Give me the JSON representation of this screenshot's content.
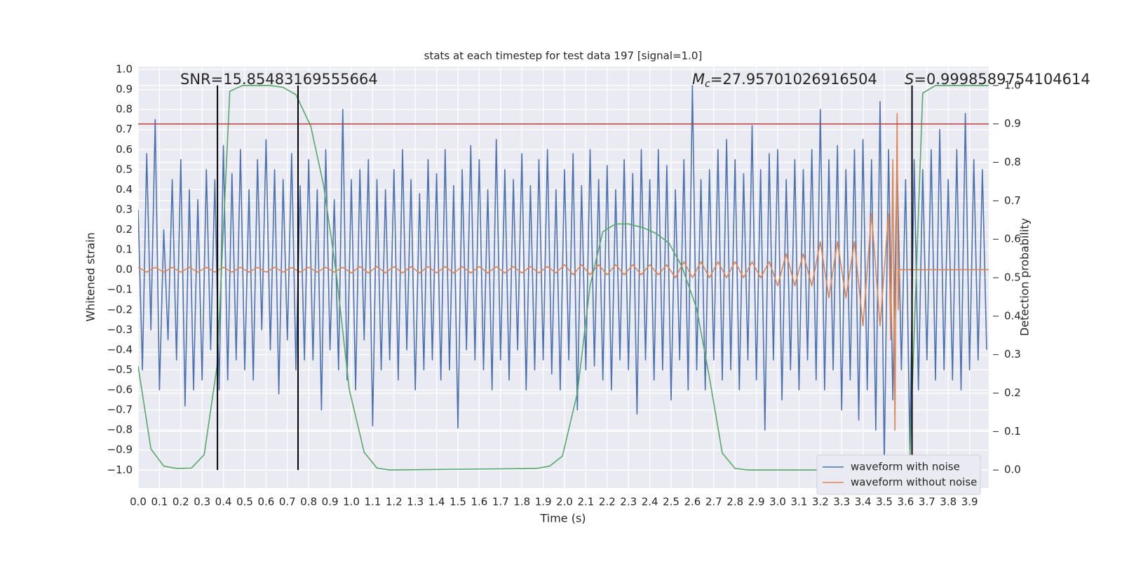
{
  "chart_data": {
    "type": "line",
    "title": "stats at each timestep for test data 197 [signal=1.0]",
    "xlabel": "Time (s)",
    "ylabel": "Whitened strain",
    "y2label": "Detection probability",
    "annotations": [
      {
        "text": "SNR=15.85483169555664"
      },
      {
        "symbol": "M",
        "subscript": "c",
        "text": "=27.95701026916504"
      },
      {
        "symbol": "S",
        "text": "=0.9998589754104614"
      }
    ],
    "xlim": [
      0,
      3.99
    ],
    "ylim": [
      -1.09,
      1.014
    ],
    "y2lim": [
      -0.047,
      1.049
    ],
    "grid": true,
    "legend": "lower right",
    "xticks": [
      {
        "value": 0,
        "label": "0.0"
      },
      {
        "value": 0.1,
        "label": "0.1"
      },
      {
        "value": 0.2,
        "label": "0.2"
      },
      {
        "value": 0.3,
        "label": "0.3"
      },
      {
        "value": 0.4,
        "label": "0.4"
      },
      {
        "value": 0.5,
        "label": "0.5"
      },
      {
        "value": 0.6,
        "label": "0.6"
      },
      {
        "value": 0.7,
        "label": "0.7"
      },
      {
        "value": 0.8,
        "label": "0.8"
      },
      {
        "value": 0.9,
        "label": "0.9"
      },
      {
        "value": 1,
        "label": "1.0"
      },
      {
        "value": 1.1,
        "label": "1.1"
      },
      {
        "value": 1.2,
        "label": "1.2"
      },
      {
        "value": 1.3,
        "label": "1.3"
      },
      {
        "value": 1.4,
        "label": "1.4"
      },
      {
        "value": 1.5,
        "label": "1.5"
      },
      {
        "value": 1.6,
        "label": "1.6"
      },
      {
        "value": 1.7,
        "label": "1.7"
      },
      {
        "value": 1.8,
        "label": "1.8"
      },
      {
        "value": 1.9,
        "label": "1.9"
      },
      {
        "value": 2,
        "label": "2.0"
      },
      {
        "value": 2.1,
        "label": "2.1"
      },
      {
        "value": 2.2,
        "label": "2.2"
      },
      {
        "value": 2.3,
        "label": "2.3"
      },
      {
        "value": 2.4,
        "label": "2.4"
      },
      {
        "value": 2.5,
        "label": "2.5"
      },
      {
        "value": 2.6,
        "label": "2.6"
      },
      {
        "value": 2.7,
        "label": "2.7"
      },
      {
        "value": 2.8,
        "label": "2.8"
      },
      {
        "value": 2.9,
        "label": "2.9"
      },
      {
        "value": 3,
        "label": "3.0"
      },
      {
        "value": 3.1,
        "label": "3.1"
      },
      {
        "value": 3.2,
        "label": "3.2"
      },
      {
        "value": 3.3,
        "label": "3.3"
      },
      {
        "value": 3.4,
        "label": "3.4"
      },
      {
        "value": 3.5,
        "label": "3.5"
      },
      {
        "value": 3.6,
        "label": "3.6"
      },
      {
        "value": 3.7,
        "label": "3.7"
      },
      {
        "value": 3.8,
        "label": "3.8"
      },
      {
        "value": 3.9,
        "label": "3.9"
      }
    ],
    "yticks": [
      {
        "value": -1,
        "label": "−1.0"
      },
      {
        "value": -0.9,
        "label": "−0.9"
      },
      {
        "value": -0.8,
        "label": "−0.8"
      },
      {
        "value": -0.7,
        "label": "−0.7"
      },
      {
        "value": -0.6,
        "label": "−0.6"
      },
      {
        "value": -0.5,
        "label": "−0.5"
      },
      {
        "value": -0.4,
        "label": "−0.4"
      },
      {
        "value": -0.3,
        "label": "−0.3"
      },
      {
        "value": -0.2,
        "label": "−0.2"
      },
      {
        "value": -0.1,
        "label": "−0.1"
      },
      {
        "value": 0,
        "label": "0.0"
      },
      {
        "value": 0.1,
        "label": "0.1"
      },
      {
        "value": 0.2,
        "label": "0.2"
      },
      {
        "value": 0.3,
        "label": "0.3"
      },
      {
        "value": 0.4,
        "label": "0.4"
      },
      {
        "value": 0.5,
        "label": "0.5"
      },
      {
        "value": 0.6,
        "label": "0.6"
      },
      {
        "value": 0.7,
        "label": "0.7"
      },
      {
        "value": 0.8,
        "label": "0.8"
      },
      {
        "value": 0.9,
        "label": "0.9"
      },
      {
        "value": 1,
        "label": "1.0"
      }
    ],
    "y2ticks": [
      {
        "value": 0,
        "label": "0.0"
      },
      {
        "value": 0.1,
        "label": "0.1"
      },
      {
        "value": 0.2,
        "label": "0.2"
      },
      {
        "value": 0.3,
        "label": "0.3"
      },
      {
        "value": 0.4,
        "label": "0.4"
      },
      {
        "value": 0.5,
        "label": "0.5"
      },
      {
        "value": 0.6,
        "label": "0.6"
      },
      {
        "value": 0.7,
        "label": "0.7"
      },
      {
        "value": 0.8,
        "label": "0.8"
      },
      {
        "value": 0.9,
        "label": "0.9"
      },
      {
        "value": 1,
        "label": "1.0"
      }
    ],
    "hline": {
      "y2": 0.9,
      "color": "#c03d3e"
    },
    "vlines": {
      "x": [
        0.372,
        0.75,
        3.63
      ],
      "y2_span": [
        0,
        1
      ],
      "color": "#000000"
    },
    "series": [
      {
        "name": "waveform with noise",
        "color": "#4c72b0",
        "x": [
          0,
          0.02,
          0.04,
          0.06,
          0.08,
          0.1,
          0.12,
          0.14,
          0.16,
          0.18,
          0.2,
          0.22,
          0.24,
          0.26,
          0.28,
          0.3,
          0.32,
          0.34,
          0.36,
          0.38,
          0.4,
          0.42,
          0.44,
          0.46,
          0.48,
          0.5,
          0.52,
          0.54,
          0.56,
          0.58,
          0.6,
          0.62,
          0.64,
          0.66,
          0.68,
          0.7,
          0.72,
          0.74,
          0.76,
          0.78,
          0.8,
          0.82,
          0.84,
          0.86,
          0.88,
          0.9,
          0.92,
          0.94,
          0.96,
          0.98,
          1,
          1.02,
          1.04,
          1.06,
          1.08,
          1.1,
          1.12,
          1.14,
          1.16,
          1.18,
          1.2,
          1.22,
          1.24,
          1.26,
          1.28,
          1.3,
          1.32,
          1.34,
          1.36,
          1.38,
          1.4,
          1.42,
          1.44,
          1.46,
          1.48,
          1.5,
          1.52,
          1.54,
          1.56,
          1.58,
          1.6,
          1.62,
          1.64,
          1.66,
          1.68,
          1.7,
          1.72,
          1.74,
          1.76,
          1.78,
          1.8,
          1.82,
          1.84,
          1.86,
          1.88,
          1.9,
          1.92,
          1.94,
          1.96,
          1.98,
          2,
          2.02,
          2.04,
          2.06,
          2.08,
          2.1,
          2.12,
          2.14,
          2.16,
          2.18,
          2.2,
          2.22,
          2.24,
          2.26,
          2.28,
          2.3,
          2.32,
          2.34,
          2.36,
          2.38,
          2.4,
          2.42,
          2.44,
          2.46,
          2.48,
          2.5,
          2.52,
          2.54,
          2.56,
          2.58,
          2.6,
          2.62,
          2.64,
          2.66,
          2.68,
          2.7,
          2.72,
          2.74,
          2.76,
          2.78,
          2.8,
          2.82,
          2.84,
          2.86,
          2.88,
          2.9,
          2.92,
          2.94,
          2.96,
          2.98,
          3,
          3.02,
          3.04,
          3.06,
          3.08,
          3.1,
          3.12,
          3.14,
          3.16,
          3.18,
          3.2,
          3.22,
          3.24,
          3.26,
          3.28,
          3.3,
          3.32,
          3.34,
          3.36,
          3.38,
          3.4,
          3.42,
          3.44,
          3.46,
          3.48,
          3.5,
          3.52,
          3.54,
          3.56,
          3.58,
          3.6,
          3.62,
          3.64,
          3.66,
          3.68,
          3.7,
          3.72,
          3.74,
          3.76,
          3.78,
          3.8,
          3.82,
          3.84,
          3.86,
          3.88,
          3.9,
          3.92,
          3.94,
          3.96,
          3.98
        ],
        "values": [
          0.3,
          -0.5,
          0.58,
          -0.3,
          0.75,
          -0.6,
          0.2,
          -0.35,
          0.45,
          -0.45,
          0.55,
          -0.68,
          0.4,
          -0.6,
          0.35,
          -0.55,
          0.5,
          -0.4,
          0.45,
          -0.6,
          0.62,
          -0.55,
          0.48,
          -0.45,
          0.6,
          -0.5,
          0.4,
          -0.55,
          0.55,
          -0.3,
          0.65,
          -0.4,
          0.5,
          -0.62,
          0.45,
          -0.35,
          0.58,
          -0.5,
          0.42,
          -0.45,
          0.55,
          -0.45,
          0.4,
          -0.7,
          0.6,
          -0.4,
          0.35,
          -0.5,
          0.8,
          -0.55,
          0.45,
          -0.6,
          0.5,
          -0.35,
          0.55,
          -0.78,
          0.45,
          -0.5,
          0.4,
          -0.45,
          0.5,
          -0.55,
          0.6,
          -0.4,
          0.45,
          -0.6,
          0.38,
          -0.5,
          0.55,
          -0.45,
          0.48,
          -0.55,
          0.6,
          -0.5,
          0.42,
          -0.79,
          0.5,
          -0.4,
          0.62,
          -0.45,
          0.55,
          -0.5,
          0.4,
          -0.6,
          0.65,
          -0.45,
          0.5,
          -0.55,
          0.45,
          -0.4,
          0.58,
          -0.6,
          0.42,
          -0.5,
          0.55,
          -0.45,
          0.6,
          -0.52,
          0.4,
          -0.6,
          0.5,
          -0.45,
          0.58,
          -0.7,
          0.42,
          -0.5,
          0.6,
          -0.48,
          0.45,
          -0.55,
          0.52,
          -0.6,
          0.4,
          -0.45,
          0.55,
          -0.5,
          0.48,
          -0.72,
          0.6,
          -0.45,
          0.45,
          -0.55,
          0.6,
          -0.5,
          0.52,
          -0.65,
          0.4,
          -0.45,
          0.55,
          -0.6,
          0.92,
          -0.5,
          0.45,
          -0.6,
          0.5,
          -0.45,
          0.6,
          -0.55,
          0.65,
          -0.5,
          0.55,
          -0.6,
          0.48,
          -0.45,
          0.72,
          -0.55,
          0.5,
          -0.8,
          0.58,
          -0.45,
          0.6,
          -0.65,
          0.45,
          -0.5,
          0.55,
          -0.6,
          0.5,
          -0.45,
          0.6,
          -0.55,
          0.8,
          -0.6,
          0.55,
          -0.5,
          0.62,
          -0.7,
          0.5,
          -0.55,
          0.6,
          -0.75,
          0.65,
          -0.6,
          0.55,
          -0.8,
          0.84,
          -0.97,
          0.6,
          -0.65,
          0.55,
          -0.5,
          0.45,
          -0.9,
          0.55,
          -0.6,
          0.5,
          -0.45,
          0.6,
          -0.55,
          0.7,
          -0.5,
          0.45,
          -0.55,
          0.6,
          -0.6,
          0.78,
          -0.5,
          0.55,
          -0.45,
          0.5,
          -0.4
        ]
      },
      {
        "name": "waveform without noise",
        "color": "#dd8452",
        "x": [
          0,
          0.04,
          0.08,
          0.12,
          0.16,
          0.2,
          0.24,
          0.28,
          0.32,
          0.36,
          0.4,
          0.44,
          0.48,
          0.52,
          0.56,
          0.6,
          0.64,
          0.68,
          0.72,
          0.76,
          0.8,
          0.84,
          0.88,
          0.92,
          0.96,
          1,
          1.04,
          1.08,
          1.12,
          1.16,
          1.2,
          1.24,
          1.28,
          1.32,
          1.36,
          1.4,
          1.44,
          1.48,
          1.52,
          1.56,
          1.6,
          1.64,
          1.68,
          1.72,
          1.76,
          1.8,
          1.84,
          1.88,
          1.92,
          1.96,
          2,
          2.04,
          2.08,
          2.12,
          2.16,
          2.2,
          2.24,
          2.28,
          2.32,
          2.36,
          2.4,
          2.44,
          2.48,
          2.52,
          2.56,
          2.6,
          2.64,
          2.68,
          2.72,
          2.76,
          2.8,
          2.84,
          2.88,
          2.92,
          2.96,
          3,
          3.04,
          3.08,
          3.12,
          3.16,
          3.2,
          3.24,
          3.28,
          3.32,
          3.36,
          3.4,
          3.44,
          3.48,
          3.52,
          3.53,
          3.54,
          3.55,
          3.56,
          3.565,
          3.57,
          3.99
        ],
        "values": [
          0.012,
          -0.012,
          0.012,
          -0.012,
          0.012,
          -0.012,
          0.012,
          -0.012,
          0.012,
          -0.012,
          0.012,
          -0.012,
          0.012,
          -0.012,
          0.012,
          -0.012,
          0.012,
          -0.012,
          0.012,
          -0.012,
          0.012,
          -0.012,
          0.012,
          -0.012,
          0.012,
          -0.016,
          0.016,
          -0.016,
          0.016,
          -0.016,
          0.016,
          -0.016,
          0.016,
          -0.016,
          0.016,
          -0.016,
          0.016,
          -0.016,
          0.016,
          -0.016,
          0.016,
          -0.016,
          0.016,
          -0.016,
          0.016,
          -0.016,
          0.016,
          -0.016,
          0.016,
          -0.016,
          0.025,
          -0.025,
          0.025,
          -0.025,
          0.025,
          -0.025,
          0.025,
          -0.025,
          0.025,
          -0.025,
          0.025,
          -0.025,
          0.025,
          -0.04,
          0.04,
          -0.04,
          0.04,
          -0.04,
          0.04,
          -0.04,
          0.04,
          -0.04,
          0.04,
          -0.04,
          0.04,
          -0.08,
          0.08,
          -0.08,
          0.08,
          -0.08,
          0.14,
          -0.14,
          0.14,
          -0.14,
          0.14,
          -0.28,
          0.28,
          -0.28,
          0.28,
          -0.35,
          0.55,
          -0.8,
          0.78,
          -0.2,
          0,
          0
        ]
      },
      {
        "color": "#55a868",
        "axis": "y2",
        "x": [
          0,
          0.06,
          0.12,
          0.18,
          0.25,
          0.31,
          0.37,
          0.43,
          0.49,
          0.56,
          0.62,
          0.68,
          0.74,
          0.81,
          0.87,
          0.93,
          0.99,
          1.06,
          1.12,
          1.18,
          1.87,
          1.93,
          1.99,
          2.06,
          2.12,
          2.18,
          2.24,
          2.3,
          2.37,
          2.43,
          2.49,
          2.55,
          2.62,
          2.68,
          2.74,
          2.8,
          2.86,
          3.55,
          3.62,
          3.68,
          3.74,
          3.99
        ],
        "values": [
          0.27,
          0.055,
          0.01,
          0.004,
          0.005,
          0.04,
          0.27,
          0.985,
          1,
          1,
          1,
          0.995,
          0.976,
          0.894,
          0.74,
          0.51,
          0.21,
          0.046,
          0.005,
          0,
          0.004,
          0.01,
          0.036,
          0.2,
          0.48,
          0.62,
          0.64,
          0.64,
          0.63,
          0.615,
          0.59,
          0.53,
          0.42,
          0.24,
          0.044,
          0.004,
          0,
          0,
          0.036,
          0.98,
          1,
          1
        ]
      }
    ]
  }
}
